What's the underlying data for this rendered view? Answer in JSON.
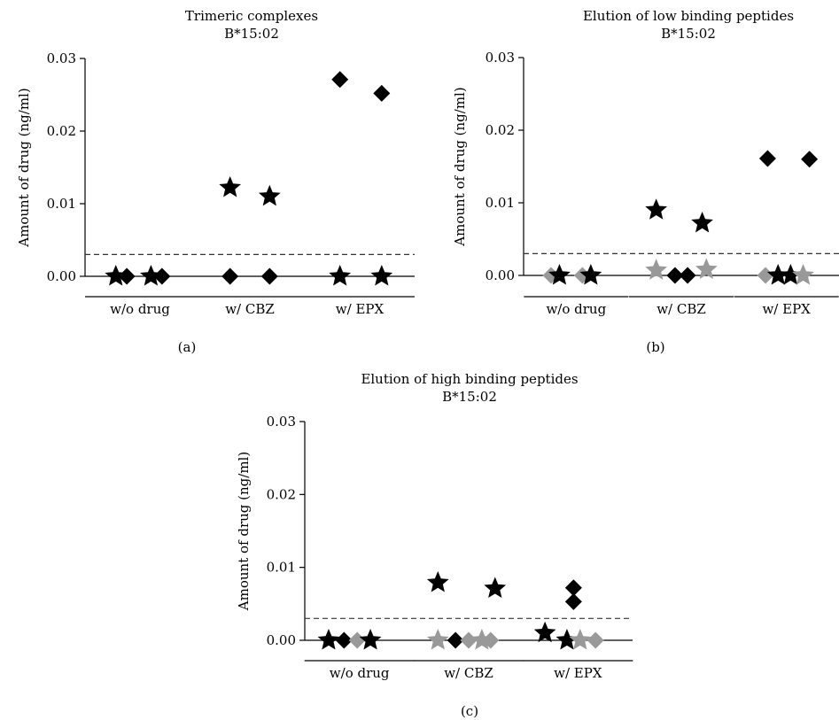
{
  "colors": {
    "black": "#000000",
    "gray": "#999999",
    "threshold": "#333333"
  },
  "chart_data": [
    {
      "type": "scatter",
      "panel_label": "(a)",
      "title": "Trimeric complexes",
      "subtitle": "B*15:02",
      "ylabel": "Amount of drug (ng/ml)",
      "ylim": [
        0,
        0.03
      ],
      "yticks": [
        "0.00",
        "0.01",
        "0.02",
        "0.03"
      ],
      "threshold": 0.003,
      "categories": [
        "w/o drug",
        "w/ CBZ",
        "w/ EPX"
      ],
      "points": [
        {
          "group": 0,
          "pos": 0.28,
          "y": 0,
          "marker": "star",
          "color": "black"
        },
        {
          "group": 0,
          "pos": 0.38,
          "y": 0,
          "marker": "diamond",
          "color": "black"
        },
        {
          "group": 0,
          "pos": 0.6,
          "y": 0,
          "marker": "star",
          "color": "black"
        },
        {
          "group": 0,
          "pos": 0.7,
          "y": 0,
          "marker": "diamond",
          "color": "black"
        },
        {
          "group": 1,
          "pos": 0.32,
          "y": 0.0122,
          "marker": "star",
          "color": "black"
        },
        {
          "group": 1,
          "pos": 0.32,
          "y": 0,
          "marker": "diamond",
          "color": "black"
        },
        {
          "group": 1,
          "pos": 0.68,
          "y": 0.011,
          "marker": "star",
          "color": "black"
        },
        {
          "group": 1,
          "pos": 0.68,
          "y": 0,
          "marker": "diamond",
          "color": "black"
        },
        {
          "group": 2,
          "pos": 0.32,
          "y": 0.0271,
          "marker": "diamond",
          "color": "black"
        },
        {
          "group": 2,
          "pos": 0.32,
          "y": 0,
          "marker": "star",
          "color": "black"
        },
        {
          "group": 2,
          "pos": 0.7,
          "y": 0.0252,
          "marker": "diamond",
          "color": "black"
        },
        {
          "group": 2,
          "pos": 0.7,
          "y": 0,
          "marker": "star",
          "color": "black"
        }
      ]
    },
    {
      "type": "scatter",
      "panel_label": "(b)",
      "title": "Elution of low binding peptides",
      "subtitle": "B*15:02",
      "ylabel": "Amount of drug (ng/ml)",
      "ylim": [
        0,
        0.03
      ],
      "yticks": [
        "0.00",
        "0.01",
        "0.02",
        "0.03"
      ],
      "threshold": 0.003,
      "categories": [
        "w/o drug",
        "w/ CBZ",
        "w/ EPX"
      ],
      "points": [
        {
          "group": 0,
          "pos": 0.26,
          "y": 0,
          "marker": "diamond",
          "color": "gray"
        },
        {
          "group": 0,
          "pos": 0.34,
          "y": 0,
          "marker": "star",
          "color": "black"
        },
        {
          "group": 0,
          "pos": 0.56,
          "y": 0,
          "marker": "diamond",
          "color": "gray"
        },
        {
          "group": 0,
          "pos": 0.64,
          "y": 0,
          "marker": "star",
          "color": "black"
        },
        {
          "group": 1,
          "pos": 0.26,
          "y": 0.009,
          "marker": "star",
          "color": "black"
        },
        {
          "group": 1,
          "pos": 0.26,
          "y": 0.0007,
          "marker": "star",
          "color": "gray"
        },
        {
          "group": 1,
          "pos": 0.44,
          "y": 0,
          "marker": "diamond",
          "color": "black"
        },
        {
          "group": 1,
          "pos": 0.56,
          "y": 0,
          "marker": "diamond",
          "color": "black"
        },
        {
          "group": 1,
          "pos": 0.7,
          "y": 0.0072,
          "marker": "star",
          "color": "black"
        },
        {
          "group": 1,
          "pos": 0.74,
          "y": 0.0008,
          "marker": "star",
          "color": "gray"
        },
        {
          "group": 2,
          "pos": 0.32,
          "y": 0.0161,
          "marker": "diamond",
          "color": "black"
        },
        {
          "group": 2,
          "pos": 0.3,
          "y": 0,
          "marker": "diamond",
          "color": "gray"
        },
        {
          "group": 2,
          "pos": 0.42,
          "y": 0,
          "marker": "star",
          "color": "black"
        },
        {
          "group": 2,
          "pos": 0.54,
          "y": 0,
          "marker": "star",
          "color": "black"
        },
        {
          "group": 2,
          "pos": 0.66,
          "y": 0,
          "marker": "star",
          "color": "gray"
        },
        {
          "group": 2,
          "pos": 0.72,
          "y": 0.016,
          "marker": "diamond",
          "color": "black"
        }
      ]
    },
    {
      "type": "scatter",
      "panel_label": "(c)",
      "title": "Elution of high binding peptides",
      "subtitle": "B*15:02",
      "ylabel": "Amount of drug (ng/ml)",
      "ylim": [
        0,
        0.03
      ],
      "yticks": [
        "0.00",
        "0.01",
        "0.02",
        "0.03"
      ],
      "threshold": 0.003,
      "categories": [
        "w/o drug",
        "w/ CBZ",
        "w/ EPX"
      ],
      "points": [
        {
          "group": 0,
          "pos": 0.22,
          "y": 0,
          "marker": "star",
          "color": "black"
        },
        {
          "group": 0,
          "pos": 0.36,
          "y": 0,
          "marker": "diamond",
          "color": "black"
        },
        {
          "group": 0,
          "pos": 0.48,
          "y": 0,
          "marker": "diamond",
          "color": "gray"
        },
        {
          "group": 0,
          "pos": 0.6,
          "y": 0,
          "marker": "star",
          "color": "black"
        },
        {
          "group": 1,
          "pos": 0.22,
          "y": 0.0079,
          "marker": "star",
          "color": "black"
        },
        {
          "group": 1,
          "pos": 0.22,
          "y": 0,
          "marker": "star",
          "color": "gray"
        },
        {
          "group": 1,
          "pos": 0.38,
          "y": 0,
          "marker": "diamond",
          "color": "black"
        },
        {
          "group": 1,
          "pos": 0.5,
          "y": 0,
          "marker": "diamond",
          "color": "gray"
        },
        {
          "group": 1,
          "pos": 0.62,
          "y": 0,
          "marker": "star",
          "color": "gray"
        },
        {
          "group": 1,
          "pos": 0.7,
          "y": 0,
          "marker": "diamond",
          "color": "gray"
        },
        {
          "group": 1,
          "pos": 0.74,
          "y": 0.0071,
          "marker": "star",
          "color": "black"
        },
        {
          "group": 2,
          "pos": 0.2,
          "y": 0.001,
          "marker": "star",
          "color": "black"
        },
        {
          "group": 2,
          "pos": 0.4,
          "y": 0,
          "marker": "star",
          "color": "black"
        },
        {
          "group": 2,
          "pos": 0.46,
          "y": 0.0072,
          "marker": "diamond",
          "color": "black"
        },
        {
          "group": 2,
          "pos": 0.46,
          "y": 0.0053,
          "marker": "diamond",
          "color": "black"
        },
        {
          "group": 2,
          "pos": 0.52,
          "y": 0,
          "marker": "star",
          "color": "gray"
        },
        {
          "group": 2,
          "pos": 0.66,
          "y": 0,
          "marker": "diamond",
          "color": "gray"
        }
      ]
    }
  ]
}
